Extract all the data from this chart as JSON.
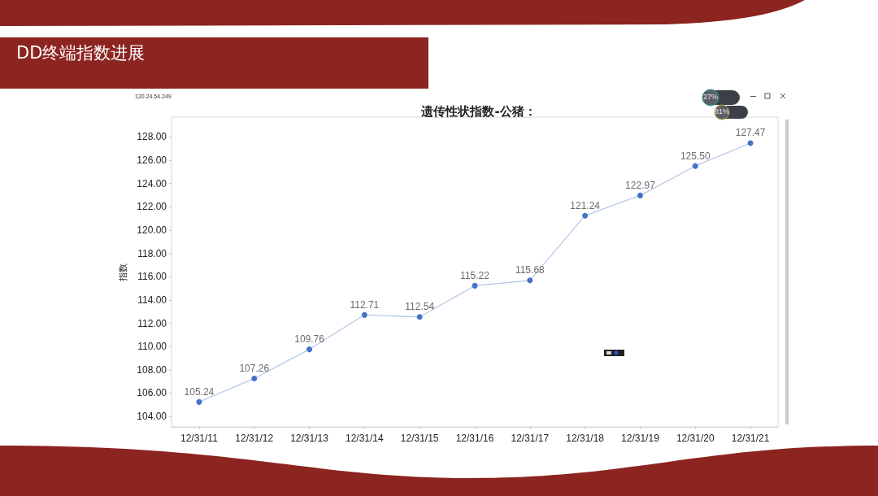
{
  "chart_data": {
    "type": "line",
    "title": "DD终端指数进展",
    "subtitle": "遗传性状指数-公猪：",
    "ylabel": "指数",
    "categories": [
      "12/31/11",
      "12/31/12",
      "12/31/13",
      "12/31/14",
      "12/31/15",
      "12/31/16",
      "12/31/17",
      "12/31/18",
      "12/31/19",
      "12/31/20",
      "12/31/21"
    ],
    "values": [
      105.24,
      107.26,
      109.76,
      112.71,
      112.54,
      115.22,
      115.68,
      121.24,
      122.97,
      125.5,
      127.47
    ],
    "value_labels": [
      "105.24",
      "107.26",
      "109.76",
      "112.71",
      "112.54",
      "115.22",
      "115.68",
      "121.24",
      "122.97",
      "125.50",
      "127.47"
    ],
    "color": "#4472c4",
    "marker": "circle",
    "ylim": [
      103.1,
      129.7
    ],
    "yticks": [
      {
        "value": 104,
        "label": "104.00"
      },
      {
        "value": 106,
        "label": "106.00"
      },
      {
        "value": 108,
        "label": "108.00"
      },
      {
        "value": 110,
        "label": "110.00"
      },
      {
        "value": 112,
        "label": "112.00"
      },
      {
        "value": 114,
        "label": "114.00"
      },
      {
        "value": 116,
        "label": "116.00"
      },
      {
        "value": 118,
        "label": "118.00"
      },
      {
        "value": 120,
        "label": "120.00"
      },
      {
        "value": 122,
        "label": "122.00"
      },
      {
        "value": 124,
        "label": "124.00"
      },
      {
        "value": 126,
        "label": "126.00"
      },
      {
        "value": 128,
        "label": "128.00"
      }
    ],
    "annotations": [
      "120.24.54.249",
      "27%",
      "81%"
    ]
  }
}
